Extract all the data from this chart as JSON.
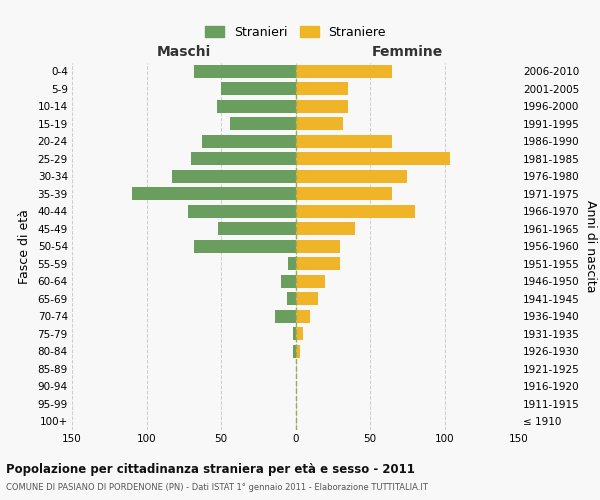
{
  "age_groups": [
    "0-4",
    "5-9",
    "10-14",
    "15-19",
    "20-24",
    "25-29",
    "30-34",
    "35-39",
    "40-44",
    "45-49",
    "50-54",
    "55-59",
    "60-64",
    "65-69",
    "70-74",
    "75-79",
    "80-84",
    "85-89",
    "90-94",
    "95-99",
    "100+"
  ],
  "birth_years": [
    "2006-2010",
    "2001-2005",
    "1996-2000",
    "1991-1995",
    "1986-1990",
    "1981-1985",
    "1976-1980",
    "1971-1975",
    "1966-1970",
    "1961-1965",
    "1956-1960",
    "1951-1955",
    "1946-1950",
    "1941-1945",
    "1936-1940",
    "1931-1935",
    "1926-1930",
    "1921-1925",
    "1916-1920",
    "1911-1915",
    "≤ 1910"
  ],
  "maschi": [
    68,
    50,
    53,
    44,
    63,
    70,
    83,
    110,
    72,
    52,
    68,
    5,
    10,
    6,
    14,
    2,
    2,
    0,
    0,
    0,
    0
  ],
  "femmine": [
    65,
    35,
    35,
    32,
    65,
    104,
    75,
    65,
    80,
    40,
    30,
    30,
    20,
    15,
    10,
    5,
    3,
    0,
    0,
    0,
    0
  ],
  "male_color": "#6a9e5e",
  "female_color": "#f0b429",
  "grid_color": "#cccccc",
  "center_line_color": "#9aaa55",
  "xlim": 150,
  "title": "Popolazione per cittadinanza straniera per età e sesso - 2011",
  "subtitle": "COMUNE DI PASIANO DI PORDENONE (PN) - Dati ISTAT 1° gennaio 2011 - Elaborazione TUTTITALIA.IT",
  "ylabel_left": "Fasce di età",
  "ylabel_right": "Anni di nascita",
  "legend_male": "Stranieri",
  "legend_female": "Straniere",
  "maschi_label": "Maschi",
  "femmine_label": "Femmine",
  "bg_color": "#f8f8f8"
}
